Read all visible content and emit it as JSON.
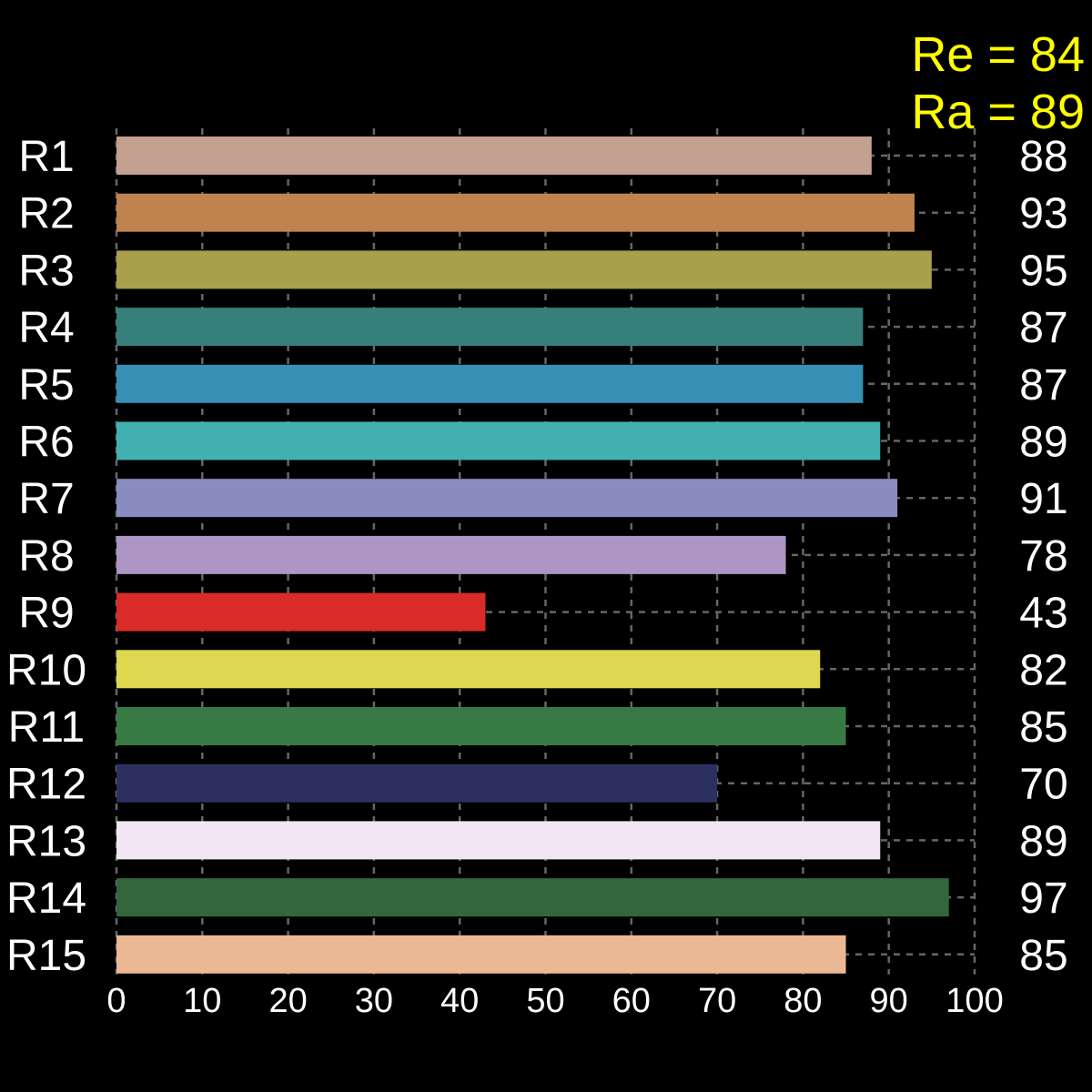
{
  "chart_data": {
    "type": "bar",
    "orientation": "horizontal",
    "categories": [
      "R1",
      "R2",
      "R3",
      "R4",
      "R5",
      "R6",
      "R7",
      "R8",
      "R9",
      "R10",
      "R11",
      "R12",
      "R13",
      "R14",
      "R15"
    ],
    "values": [
      88,
      93,
      95,
      87,
      87,
      89,
      91,
      78,
      43,
      82,
      85,
      70,
      89,
      97,
      85
    ],
    "value_labels": [
      "88",
      "93",
      "95",
      "87",
      "87",
      "89",
      "91",
      "78",
      "43",
      "82",
      "85",
      "70",
      "89",
      "97",
      "85"
    ],
    "colors": [
      "#c4a090",
      "#c0824f",
      "#a8a04a",
      "#367f7b",
      "#3690b5",
      "#42b0b0",
      "#888cbf",
      "#ad95c4",
      "#d92b28",
      "#ddd84f",
      "#387a44",
      "#2c3060",
      "#f1e6f4",
      "#33663b",
      "#eab893"
    ],
    "xlim": [
      0,
      100
    ],
    "x_ticks": [
      0,
      10,
      20,
      30,
      40,
      50,
      60,
      70,
      80,
      90,
      100
    ],
    "x_tick_labels": [
      "0",
      "10",
      "20",
      "30",
      "40",
      "50",
      "60",
      "70",
      "80",
      "90",
      "100"
    ],
    "grid": true,
    "background": "#000000",
    "text_color": "#ffffff",
    "grid_color": "#666666",
    "title": "",
    "xlabel": "",
    "ylabel": "",
    "annotations": [
      {
        "text": "Re = 84",
        "color": "#ffff00"
      },
      {
        "text": "Ra = 89",
        "color": "#ffff00"
      }
    ]
  }
}
